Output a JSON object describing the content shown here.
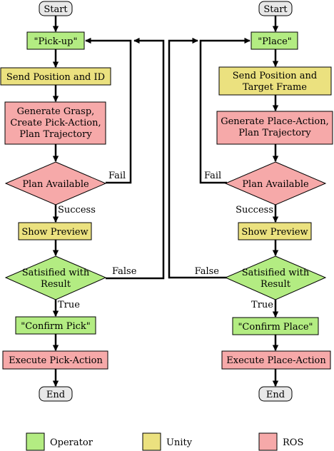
{
  "colors": {
    "operator": "#b3ec82",
    "unity": "#ebe17f",
    "ros": "#f6a9a9",
    "terminal": "#e8e8e8"
  },
  "pick": {
    "start": "Start",
    "pickup": "\"Pick-up\"",
    "send": "Send Position and ID",
    "generate": [
      "Generate Grasp,",
      "Create Pick-Action,",
      "Plan Trajectory"
    ],
    "plan_available": "Plan Available",
    "fail": "Fail",
    "success": "Success",
    "preview": "Show Preview",
    "satisfied": [
      "Satisified with",
      "Result"
    ],
    "false_label": "False",
    "true_label": "True",
    "confirm": "\"Confirm Pick\"",
    "execute": "Execute Pick-Action",
    "end": "End"
  },
  "place": {
    "start": "Start",
    "place": "\"Place\"",
    "send": [
      "Send Position and",
      "Target Frame"
    ],
    "generate": [
      "Generate Place-Action,",
      "Plan Trajectory"
    ],
    "plan_available": "Plan Available",
    "fail": "Fail",
    "success": "Success",
    "preview": "Show Preview",
    "satisfied": [
      "Satisified with",
      "Result"
    ],
    "false_label": "False",
    "true_label": "True",
    "confirm": "\"Confirm Place\"",
    "execute": "Execute Place-Action",
    "end": "End"
  },
  "legend": {
    "operator": "Operator",
    "unity": "Unity",
    "ros": "ROS"
  }
}
